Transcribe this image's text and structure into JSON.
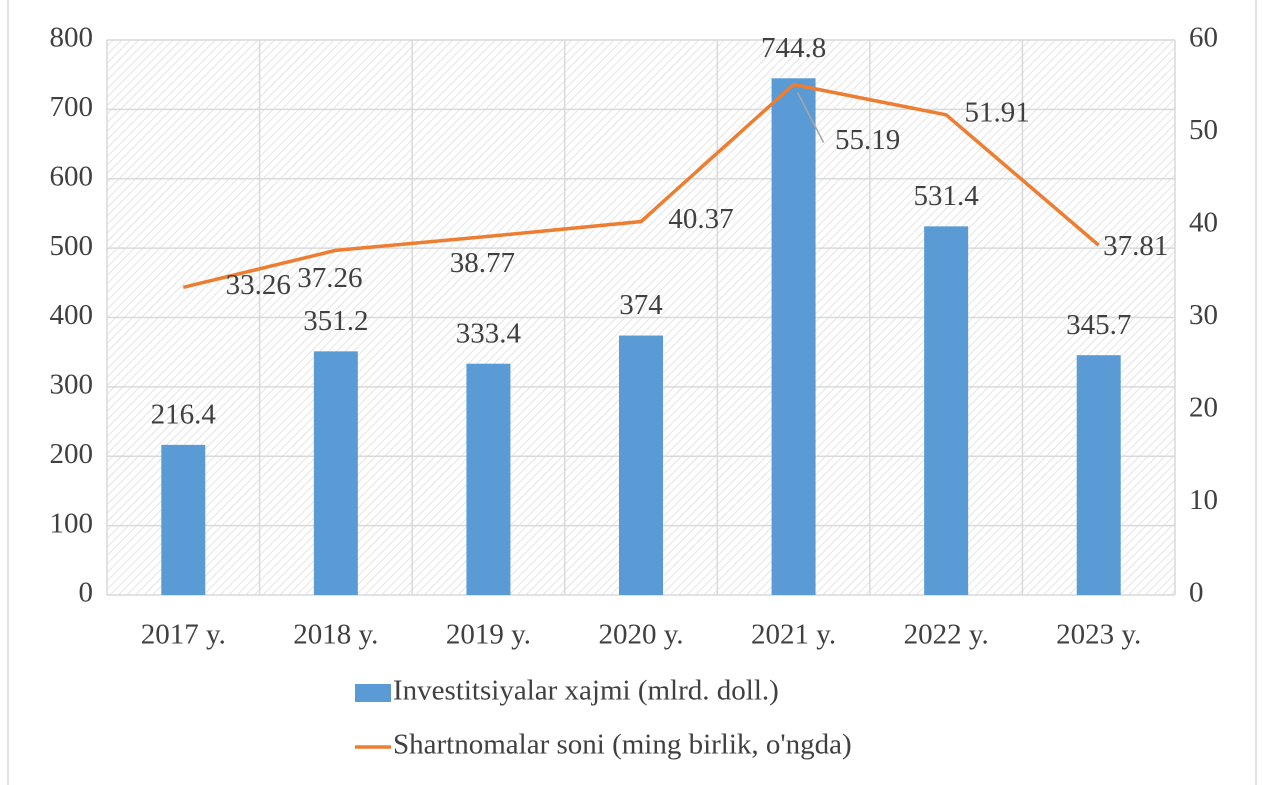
{
  "chart_data": {
    "type": "bar_line",
    "categories": [
      "2017 y.",
      "2018 y.",
      "2019 y.",
      "2020 y.",
      "2021 y.",
      "2022 y.",
      "2023 y."
    ],
    "series": [
      {
        "name": "Investitsiyalar xajmi (mlrd. doll.)",
        "type": "bar",
        "color": "#5b9bd5",
        "axis": "y",
        "values": [
          216.4,
          351.2,
          333.4,
          374,
          744.8,
          531.4,
          345.7
        ]
      },
      {
        "name": "Shartnomalar soni (ming birlik, o'ngda)",
        "type": "line",
        "color": "#ed7d31",
        "axis": "y2",
        "values": [
          33.26,
          37.26,
          38.77,
          40.37,
          55.19,
          51.91,
          37.81
        ]
      }
    ],
    "ylim": [
      0,
      800
    ],
    "yticks": [
      0,
      100,
      200,
      300,
      400,
      500,
      600,
      700,
      800
    ],
    "y2lim": [
      0,
      60
    ],
    "y2ticks": [
      0,
      10,
      20,
      30,
      40,
      50,
      60
    ],
    "grid": true,
    "legend": "bottom"
  }
}
